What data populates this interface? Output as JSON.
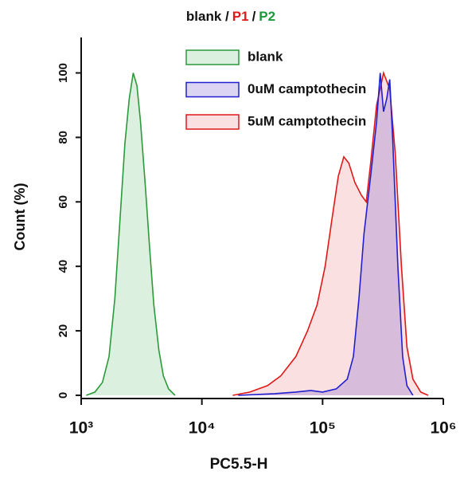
{
  "chart_data": {
    "type": "area",
    "title_parts": [
      {
        "text": "blank /",
        "color": "#111111"
      },
      {
        "text": "P1",
        "color": "#e01818"
      },
      {
        "text": "/",
        "color": "#111111"
      },
      {
        "text": "P2",
        "color": "#1a9a3a"
      }
    ],
    "x_label": "PC5.5-H",
    "y_label": "Count (%)",
    "xscale": "log",
    "xlim": [
      1000,
      1000000
    ],
    "xticks": [
      {
        "value": 1000,
        "label": "10³"
      },
      {
        "value": 10000,
        "label": "10⁴"
      },
      {
        "value": 100000,
        "label": "10⁵"
      },
      {
        "value": 1000000,
        "label": "10⁶"
      }
    ],
    "ylim": [
      -1,
      111
    ],
    "yticks": [
      0,
      20,
      40,
      60,
      80,
      100
    ],
    "legend": "upper-right",
    "series": [
      {
        "name": "blank",
        "color": "#2a9a3a",
        "fill": "rgba(60,170,80,0.18)",
        "x": [
          1100,
          1300,
          1500,
          1700,
          1900,
          2100,
          2300,
          2500,
          2700,
          2900,
          3100,
          3400,
          3700,
          4000,
          4400,
          4800,
          5300,
          6000
        ],
        "values": [
          0,
          1,
          4,
          12,
          30,
          55,
          78,
          92,
          100,
          96,
          85,
          65,
          45,
          28,
          14,
          6,
          2,
          0
        ]
      },
      {
        "name": "5uM camptothecin",
        "color": "#e01818",
        "fill": "rgba(230,60,70,0.16)",
        "x": [
          18000,
          25000,
          35000,
          45000,
          60000,
          75000,
          90000,
          105000,
          120000,
          135000,
          150000,
          165000,
          185000,
          210000,
          230000,
          250000,
          280000,
          320000,
          360000,
          400000,
          450000,
          500000,
          560000,
          650000,
          750000
        ],
        "values": [
          0,
          1,
          3,
          6,
          12,
          20,
          28,
          40,
          55,
          68,
          74,
          72,
          66,
          62,
          60,
          72,
          90,
          100,
          95,
          75,
          40,
          15,
          5,
          1,
          0
        ]
      },
      {
        "name": "0uM camptothecin",
        "color": "#2020d0",
        "fill": "rgba(90,60,200,0.22)",
        "x": [
          20000,
          40000,
          60000,
          80000,
          100000,
          130000,
          160000,
          180000,
          200000,
          220000,
          250000,
          280000,
          300000,
          320000,
          340000,
          360000,
          380000,
          420000,
          460000,
          500000,
          560000
        ],
        "values": [
          0,
          0.5,
          1,
          1.5,
          1,
          2,
          5,
          12,
          30,
          50,
          68,
          85,
          100,
          88,
          92,
          98,
          80,
          40,
          12,
          3,
          0
        ]
      }
    ],
    "legend_order": [
      0,
      2,
      1
    ]
  }
}
